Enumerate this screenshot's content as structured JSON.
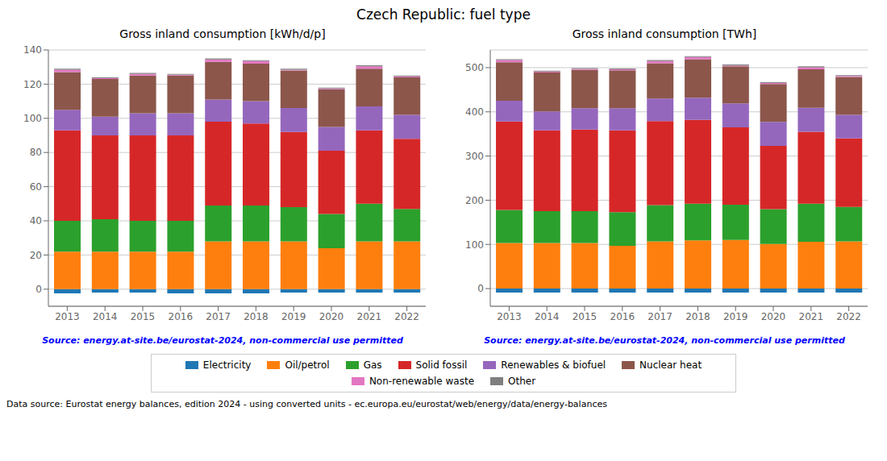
{
  "title": "Czech Republic: fuel type",
  "annotations": [
    "Data source: Eurostat energy balances, edition 2024 - using converted units - ec.europa.eu/eurostat/web/energy/data/energy-balances"
  ],
  "legend": "bottom",
  "chart_data": [
    {
      "type": "bar",
      "stacked": true,
      "grid": true,
      "title": "Gross inland consumption [kWh/d/p]",
      "annotations": [
        "Source: energy.at-site.be/eurostat-2024, non-commercial use permitted"
      ],
      "categories": [
        "2013",
        "2014",
        "2015",
        "2016",
        "2017",
        "2018",
        "2019",
        "2020",
        "2021",
        "2022"
      ],
      "ylim": [
        -10,
        140
      ],
      "yticks": [
        0,
        20,
        40,
        60,
        80,
        100,
        120,
        140
      ],
      "series": [
        {
          "name": "Electricity",
          "color": "#1f77b4",
          "values": [
            -2.5,
            -2.0,
            -2.0,
            -2.5,
            -2.5,
            -2.5,
            -2.0,
            -2.0,
            -2.0,
            -2.0
          ]
        },
        {
          "name": "Oil/petrol",
          "color": "#ff7f0e",
          "values": [
            22,
            22,
            22,
            22,
            28,
            28,
            28,
            24,
            28,
            28
          ]
        },
        {
          "name": "Gas",
          "color": "#2ca02c",
          "values": [
            18,
            19,
            18,
            18,
            21,
            21,
            20,
            20,
            22,
            19
          ]
        },
        {
          "name": "Solid fossil",
          "color": "#d62728",
          "values": [
            53,
            49,
            50,
            50,
            49,
            48,
            44,
            37,
            43,
            41
          ]
        },
        {
          "name": "Renewables & biofuel",
          "color": "#9467bd",
          "values": [
            12,
            11,
            13,
            13,
            13,
            13,
            14,
            14,
            14,
            14
          ]
        },
        {
          "name": "Nuclear heat",
          "color": "#8c564b",
          "values": [
            22,
            22,
            22,
            22,
            22,
            22,
            22,
            22,
            22,
            22
          ]
        },
        {
          "name": "Non-renewable waste",
          "color": "#e377c2",
          "values": [
            1.5,
            0.5,
            1.0,
            0.5,
            1.5,
            1.5,
            0.5,
            0.5,
            1.5,
            0.5
          ]
        },
        {
          "name": "Other",
          "color": "#7f7f7f",
          "values": [
            0.5,
            0.5,
            0.5,
            0.5,
            0.5,
            0.5,
            0.5,
            0.5,
            0.5,
            0.5
          ]
        }
      ]
    },
    {
      "type": "bar",
      "stacked": true,
      "grid": true,
      "title": "Gross inland consumption [TWh]",
      "annotations": [
        "Source: energy.at-site.be/eurostat-2024, non-commercial use permitted"
      ],
      "categories": [
        "2013",
        "2014",
        "2015",
        "2016",
        "2017",
        "2018",
        "2019",
        "2020",
        "2021",
        "2022"
      ],
      "ylim": [
        -40,
        540
      ],
      "yticks": [
        0,
        100,
        200,
        300,
        400,
        500
      ],
      "series": [
        {
          "name": "Electricity",
          "color": "#1f77b4",
          "values": [
            -9,
            -9,
            -9,
            -9,
            -9,
            -9,
            -9,
            -9,
            -9,
            -9
          ]
        },
        {
          "name": "Oil/petrol",
          "color": "#ff7f0e",
          "values": [
            103,
            103,
            103,
            97,
            107,
            109,
            110,
            101,
            106,
            107
          ]
        },
        {
          "name": "Gas",
          "color": "#2ca02c",
          "values": [
            75,
            72,
            72,
            76,
            82,
            83,
            80,
            79,
            86,
            78
          ]
        },
        {
          "name": "Solid fossil",
          "color": "#d62728",
          "values": [
            200,
            183,
            185,
            185,
            190,
            190,
            175,
            143,
            163,
            155
          ]
        },
        {
          "name": "Renewables & biofuel",
          "color": "#9467bd",
          "values": [
            47,
            43,
            48,
            50,
            51,
            50,
            54,
            54,
            54,
            53
          ]
        },
        {
          "name": "Nuclear heat",
          "color": "#8c564b",
          "values": [
            87,
            88,
            87,
            86,
            80,
            87,
            84,
            86,
            87,
            86
          ]
        },
        {
          "name": "Non-renewable waste",
          "color": "#e377c2",
          "values": [
            5,
            2,
            2,
            2,
            5,
            5,
            2,
            2,
            5,
            2
          ]
        },
        {
          "name": "Other",
          "color": "#7f7f7f",
          "values": [
            2,
            2,
            2,
            2,
            2,
            2,
            2,
            2,
            2,
            2
          ]
        }
      ]
    }
  ]
}
